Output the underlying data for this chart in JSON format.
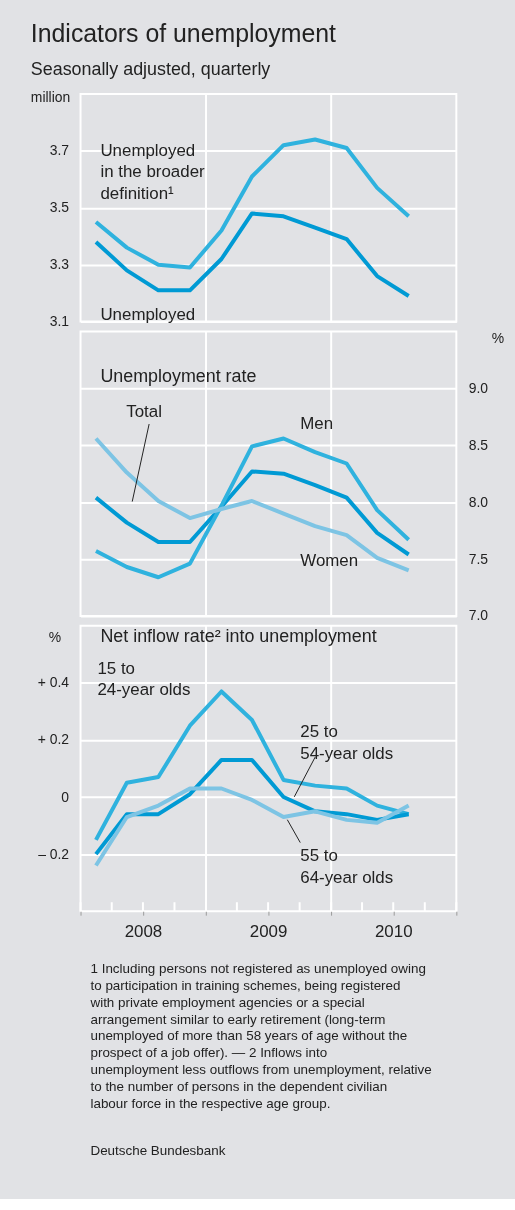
{
  "chart_data": [
    {
      "type": "line",
      "title": "Indicators of unemployment",
      "subtitle": "Seasonally adjusted, quarterly",
      "ylabel": "million",
      "x": [
        "2008-02-15",
        "2008-05-15",
        "2008-08-15",
        "2008-11-15",
        "2009-02-15",
        "2009-05-15",
        "2009-08-15",
        "2009-11-15",
        "2010-02-15",
        "2010-05-15",
        "2010-08-15"
      ],
      "series": [
        {
          "name": "Unemployed in the broader definition¹",
          "color": "#2fb2de",
          "values": [
            3.45,
            3.36,
            3.3,
            3.29,
            3.42,
            3.61,
            3.72,
            3.74,
            3.71,
            3.57,
            3.47
          ]
        },
        {
          "name": "Unemployed",
          "color": "#009ad4",
          "values": [
            3.38,
            3.28,
            3.21,
            3.21,
            3.32,
            3.48,
            3.47,
            3.43,
            3.39,
            3.26,
            3.19
          ]
        }
      ],
      "xlim": [
        "2008-01-01",
        "2011-01-01"
      ],
      "ylim": [
        3.1,
        3.9
      ],
      "yticks": [
        3.1,
        3.3,
        3.5,
        3.7
      ],
      "grid": "y",
      "tick_labels": "y",
      "line_style": "solid",
      "ref_lines": [
        {
          "axis": "x",
          "value": "2009-01-01",
          "color": "#ffffff"
        },
        {
          "axis": "x",
          "value": "2010-01-01",
          "color": "#ffffff"
        }
      ]
    },
    {
      "type": "line",
      "title": "Unemployment rate",
      "y2label": "%",
      "x": [
        "2008-02-15",
        "2008-05-15",
        "2008-08-15",
        "2008-11-15",
        "2009-02-15",
        "2009-05-15",
        "2009-08-15",
        "2009-11-15",
        "2010-02-15",
        "2010-05-15",
        "2010-08-15"
      ],
      "series": [
        {
          "name": "Total",
          "color": "#009ad4",
          "axis": "y2",
          "values": [
            8.04,
            7.82,
            7.65,
            7.65,
            7.96,
            8.27,
            8.25,
            8.15,
            8.04,
            7.73,
            7.54
          ]
        },
        {
          "name": "Men",
          "color": "#2fb2de",
          "axis": "y2",
          "values": [
            7.57,
            7.43,
            7.34,
            7.46,
            7.97,
            8.49,
            8.56,
            8.44,
            8.34,
            7.93,
            7.67
          ]
        },
        {
          "name": "Women",
          "color": "#7dc4e4",
          "axis": "y2",
          "values": [
            8.56,
            8.26,
            8.01,
            7.86,
            7.94,
            8.01,
            7.9,
            7.79,
            7.71,
            7.51,
            7.4
          ]
        }
      ],
      "xlim": [
        "2008-01-01",
        "2011-01-01"
      ],
      "y2lim": [
        7.0,
        9.5
      ],
      "y2ticks": [
        {
          "value": 7,
          "label": "7.0"
        },
        7.5,
        {
          "value": 8,
          "label": "8.0"
        },
        8.5,
        {
          "value": 9,
          "label": "9.0"
        }
      ],
      "grid": "y",
      "tick_labels": "y",
      "line_style": "solid",
      "ref_lines": [
        {
          "axis": "x",
          "value": "2009-01-01",
          "color": "#ffffff"
        },
        {
          "axis": "x",
          "value": "2010-01-01",
          "color": "#ffffff"
        }
      ]
    },
    {
      "type": "line",
      "title": "Net inflow rate² into unemployment",
      "ylabel": "%",
      "x": [
        "2008-02-15",
        "2008-05-15",
        "2008-08-15",
        "2008-11-15",
        "2009-02-15",
        "2009-05-15",
        "2009-08-15",
        "2009-11-15",
        "2010-02-15",
        "2010-05-15",
        "2010-08-15"
      ],
      "series": [
        {
          "name": "15 to 24-year olds",
          "color": "#2fb2de",
          "values": [
            -0.15,
            0.05,
            0.07,
            0.25,
            0.37,
            0.27,
            0.06,
            0.04,
            0.03,
            -0.03,
            -0.06
          ]
        },
        {
          "name": "25 to 54-year olds",
          "color": "#009ad4",
          "values": [
            -0.2,
            -0.06,
            -0.06,
            0.01,
            0.13,
            0.13,
            0.0,
            -0.05,
            -0.06,
            -0.08,
            -0.06
          ]
        },
        {
          "name": "55 to 64-year olds",
          "color": "#7dc4e4",
          "values": [
            -0.24,
            -0.07,
            -0.03,
            0.03,
            0.03,
            -0.01,
            -0.07,
            -0.05,
            -0.08,
            -0.09,
            -0.03
          ]
        }
      ],
      "xlim": [
        "2008-01-01",
        "2011-01-01"
      ],
      "ylim": [
        -0.4,
        0.6
      ],
      "yticks": [
        {
          "value": 0.4,
          "label": "+ 0.4"
        },
        {
          "value": 0.2,
          "label": "+ 0.2"
        },
        0,
        {
          "value": -0.2,
          "label": "– 0.2"
        }
      ],
      "xticks": [
        {
          "value": "2008-01-01",
          "label": null
        },
        {
          "value": "2008-04-01",
          "label": null
        },
        {
          "value": "2008-07-01",
          "label": "2008"
        },
        {
          "value": "2008-10-01",
          "label": null
        },
        {
          "value": "2009-01-01",
          "label": null
        },
        {
          "value": "2009-04-01",
          "label": null
        },
        {
          "value": "2009-07-01",
          "label": "2009"
        },
        {
          "value": "2009-10-01",
          "label": null
        },
        {
          "value": "2010-01-01",
          "label": null
        },
        {
          "value": "2010-04-01",
          "label": null
        },
        {
          "value": "2010-07-01",
          "label": "2010"
        },
        {
          "value": "2010-10-01",
          "label": null
        },
        {
          "value": "2011-01-01",
          "label": null
        }
      ],
      "grid": "y",
      "line_style": "solid",
      "ref_lines": [
        {
          "axis": "x",
          "value": "2009-01-01",
          "color": "#ffffff"
        },
        {
          "axis": "x",
          "value": "2010-01-01",
          "color": "#ffffff"
        }
      ],
      "annotations": [
        "1 Including persons not registered as unemployed owing to participation in training schemes, being registered with private employment agencies or a special arrangement similar to early retirement (long-term unemployed of more than 58 years of age without the prospect of a job offer). — 2 Inflows into unemployment less outflows from unemployment, relative to the number of persons in the dependent civilian labour force in the respective age group.",
        "Deutsche Bundesbank"
      ]
    }
  ]
}
